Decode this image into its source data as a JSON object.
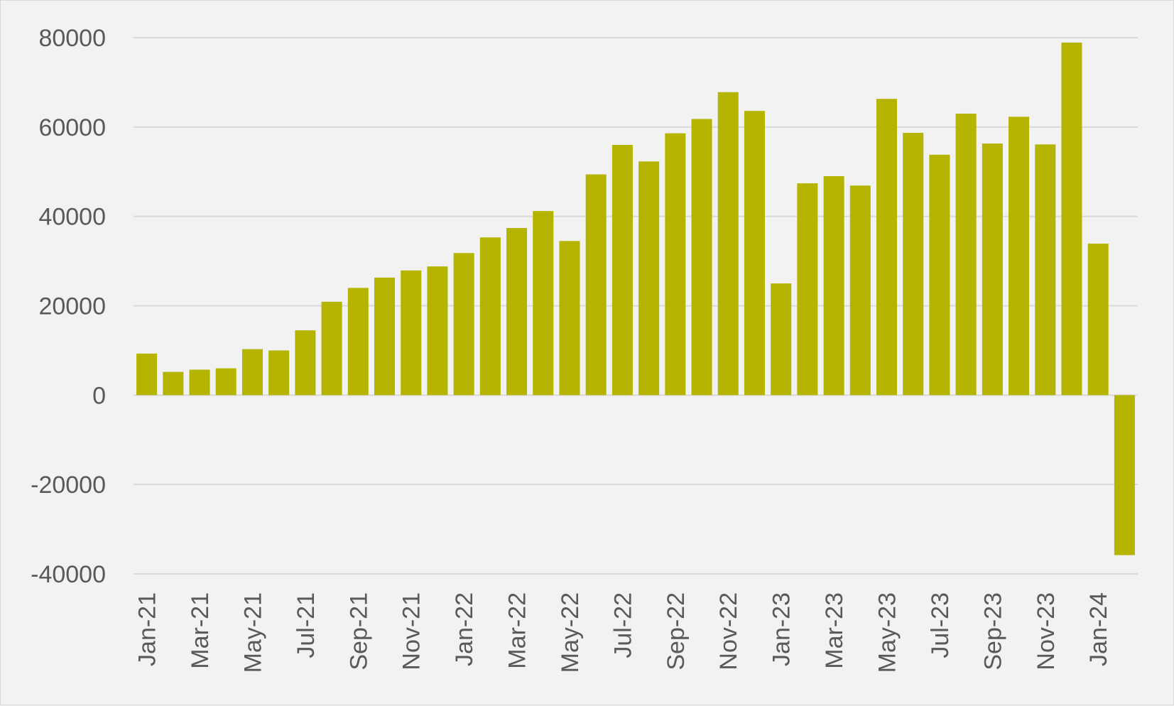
{
  "chart_data": {
    "type": "bar",
    "title": "",
    "xlabel": "",
    "ylabel": "",
    "ylim": [
      -40000,
      80000
    ],
    "yticks": [
      80000,
      60000,
      40000,
      20000,
      0,
      -20000,
      -40000
    ],
    "grid": true,
    "legend": "none",
    "bar_color": "#b5b400",
    "gridline_color": "#d9d9d9",
    "label_color": "#595959",
    "background_color": "#f2f2f2",
    "categories": [
      "Jan-21",
      "Feb-21",
      "Mar-21",
      "Apr-21",
      "May-21",
      "Jun-21",
      "Jul-21",
      "Aug-21",
      "Sep-21",
      "Oct-21",
      "Nov-21",
      "Dec-21",
      "Jan-22",
      "Feb-22",
      "Mar-22",
      "Apr-22",
      "May-22",
      "Jun-22",
      "Jul-22",
      "Aug-22",
      "Sep-22",
      "Oct-22",
      "Nov-22",
      "Dec-22",
      "Jan-23",
      "Feb-23",
      "Mar-23",
      "Apr-23",
      "May-23",
      "Jun-23",
      "Jul-23",
      "Aug-23",
      "Sep-23",
      "Oct-23",
      "Nov-23",
      "Dec-23",
      "Jan-24",
      "Feb-24"
    ],
    "visible_tick_labels": [
      "Jan-21",
      "Mar-21",
      "May-21",
      "Jul-21",
      "Sep-21",
      "Nov-21",
      "Jan-22",
      "Mar-22",
      "May-22",
      "Jul-22",
      "Sep-22",
      "Nov-22",
      "Jan-23",
      "Mar-23",
      "May-23",
      "Jul-23",
      "Sep-23",
      "Nov-23",
      "Jan-24"
    ],
    "values": [
      9300,
      5200,
      5700,
      6000,
      10300,
      10000,
      14500,
      20900,
      24000,
      26300,
      27900,
      28800,
      31800,
      35300,
      37400,
      41200,
      34500,
      49400,
      56000,
      52300,
      58600,
      61800,
      67800,
      63600,
      25000,
      47400,
      49000,
      46900,
      66300,
      58700,
      53800,
      63000,
      56300,
      62300,
      56100,
      78900,
      33900,
      -35800
    ]
  }
}
